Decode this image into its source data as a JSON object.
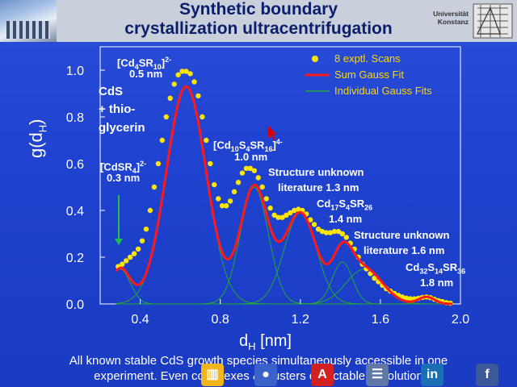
{
  "header": {
    "title_line1": "Synthetic boundary",
    "title_line2": "crystallization ultracentrifugation",
    "logo_line1": "Universität",
    "logo_line2": "Konstanz"
  },
  "annotations": {
    "cd4_formula": "[Cd4SR10]2-",
    "cd4_size": "0.5 nm",
    "cds_line1": "CdS",
    "cds_line2": "+ thio-",
    "cds_line3": "glycerin",
    "cdsr4_formula": "[CdSR4]2-",
    "cdsr4_size": "0.3 nm",
    "cd10_formula": "[Cd10S4SR16]4-",
    "cd10_size": "1.0 nm",
    "unknown1_line1": "Structure unknown",
    "unknown1_line2": "literature 1.3 nm",
    "cd17_formula": "Cd17S4SR26",
    "cd17_size": "1.4 nm",
    "unknown2_line1": "Structure unknown",
    "unknown2_line2": "literature 1.6 nm",
    "cd32_formula": "Cd32S14SR36",
    "cd32_size": "1.8 nm"
  },
  "footer": {
    "line1": "All known stable CdS growth species simultaneously accessible in one",
    "line2": "experiment. Even complexes & clusters detectable in solution"
  },
  "taskbar": [
    "chart-app-icon",
    "video-icon",
    "acrobat-icon",
    "contacts-icon",
    "linkedin-icon",
    "facebook-icon"
  ],
  "colors": {
    "background": "#1f43d0",
    "points": "#ffe600",
    "sum_fit": "#ff1a1a",
    "gauss": "#22a832",
    "title": "#0b1e6b"
  },
  "chart_data": {
    "type": "scatter",
    "xlabel": "dH [nm]",
    "ylabel": "g(dH)",
    "xlim": [
      0.2,
      2.0
    ],
    "ylim": [
      0.0,
      1.1
    ],
    "xticks": [
      "0.4",
      "0.8",
      "1.2",
      "1.6",
      "2.0"
    ],
    "yticks": [
      "0.0",
      "0.2",
      "0.4",
      "0.6",
      "0.8",
      "1.0"
    ],
    "legend": {
      "placement": "top-right",
      "entries": [
        "8 exptl. Scans",
        "Sum Gauss Fit",
        "Individual Gauss Fits"
      ]
    },
    "gaussians": [
      {
        "center": 0.3,
        "amplitude": 0.15,
        "sigma": 0.05
      },
      {
        "center": 0.63,
        "amplitude": 0.93,
        "sigma": 0.1
      },
      {
        "center": 0.97,
        "amplitude": 0.5,
        "sigma": 0.07
      },
      {
        "center": 1.2,
        "amplitude": 0.39,
        "sigma": 0.08
      },
      {
        "center": 1.41,
        "amplitude": 0.18,
        "sigma": 0.05
      },
      {
        "center": 1.52,
        "amplitude": 0.15,
        "sigma": 0.09
      },
      {
        "center": 1.83,
        "amplitude": 0.03,
        "sigma": 0.04
      }
    ],
    "scan_points": {
      "x": [
        0.29,
        0.31,
        0.33,
        0.35,
        0.37,
        0.39,
        0.41,
        0.43,
        0.45,
        0.47,
        0.49,
        0.51,
        0.53,
        0.55,
        0.57,
        0.59,
        0.61,
        0.63,
        0.65,
        0.67,
        0.69,
        0.71,
        0.73,
        0.75,
        0.77,
        0.79,
        0.81,
        0.83,
        0.85,
        0.87,
        0.89,
        0.91,
        0.93,
        0.95,
        0.97,
        0.99,
        1.01,
        1.03,
        1.05,
        1.07,
        1.09,
        1.11,
        1.13,
        1.15,
        1.17,
        1.19,
        1.21,
        1.23,
        1.25,
        1.27,
        1.29,
        1.31,
        1.33,
        1.35,
        1.37,
        1.39,
        1.41,
        1.43,
        1.45,
        1.47,
        1.49,
        1.51,
        1.53,
        1.55,
        1.57,
        1.59,
        1.61,
        1.63,
        1.65,
        1.67,
        1.69,
        1.71,
        1.73,
        1.75,
        1.77,
        1.79,
        1.81,
        1.83,
        1.85,
        1.87,
        1.89,
        1.91,
        1.93,
        1.95
      ],
      "y": [
        0.16,
        0.17,
        0.185,
        0.2,
        0.215,
        0.235,
        0.27,
        0.32,
        0.4,
        0.5,
        0.6,
        0.7,
        0.8,
        0.88,
        0.94,
        0.98,
        0.995,
        0.995,
        0.985,
        0.95,
        0.89,
        0.8,
        0.7,
        0.6,
        0.51,
        0.45,
        0.42,
        0.42,
        0.44,
        0.48,
        0.52,
        0.56,
        0.58,
        0.58,
        0.57,
        0.54,
        0.5,
        0.45,
        0.41,
        0.38,
        0.37,
        0.37,
        0.38,
        0.39,
        0.4,
        0.405,
        0.4,
        0.385,
        0.36,
        0.34,
        0.32,
        0.31,
        0.305,
        0.305,
        0.31,
        0.31,
        0.3,
        0.285,
        0.26,
        0.235,
        0.2,
        0.17,
        0.15,
        0.13,
        0.11,
        0.095,
        0.08,
        0.065,
        0.055,
        0.045,
        0.037,
        0.03,
        0.025,
        0.022,
        0.022,
        0.024,
        0.028,
        0.03,
        0.027,
        0.02,
        0.014,
        0.01,
        0.006,
        0.003
      ]
    }
  }
}
